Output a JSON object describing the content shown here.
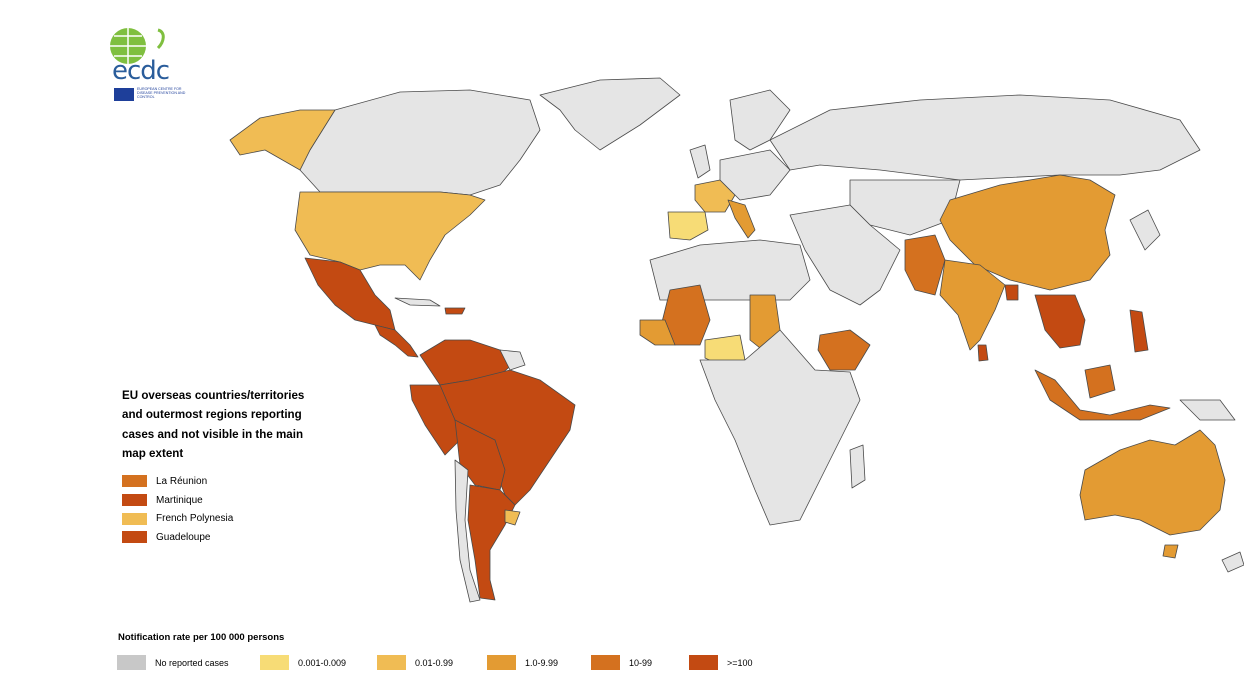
{
  "logo": {
    "text": "ecdc",
    "subtitle": "EUROPEAN CENTRE FOR DISEASE PREVENTION AND CONTROL"
  },
  "colors": {
    "no_cases": "#c8c8c8",
    "land_no_data": "#e5e5e5",
    "class_1": "#f7dc76",
    "class_2": "#f0bc54",
    "class_3": "#e39b33",
    "class_4": "#d4711f",
    "class_5": "#c34a12",
    "border": "#4a4a4a"
  },
  "eu_box": {
    "title": "EU overseas countries/territories and outermost regions reporting cases and not visible in the main map extent",
    "items": [
      {
        "label": "La Réunion",
        "color": "#d4711f"
      },
      {
        "label": "Martinique",
        "color": "#c34a12"
      },
      {
        "label": "French Polynesia",
        "color": "#f0bc54"
      },
      {
        "label": "Guadeloupe",
        "color": "#c34a12"
      }
    ]
  },
  "legend": {
    "title": "Notification rate per 100 000 persons",
    "items": [
      {
        "label": "No reported cases",
        "color": "#c8c8c8"
      },
      {
        "label": "0.001-0.009",
        "color": "#f7dc76"
      },
      {
        "label": "0.01-0.99",
        "color": "#f0bc54"
      },
      {
        "label": "1.0-9.99",
        "color": "#e39b33"
      },
      {
        "label": "10-99",
        "color": "#d4711f"
      },
      {
        "label": ">=100",
        "color": "#c34a12"
      }
    ]
  }
}
